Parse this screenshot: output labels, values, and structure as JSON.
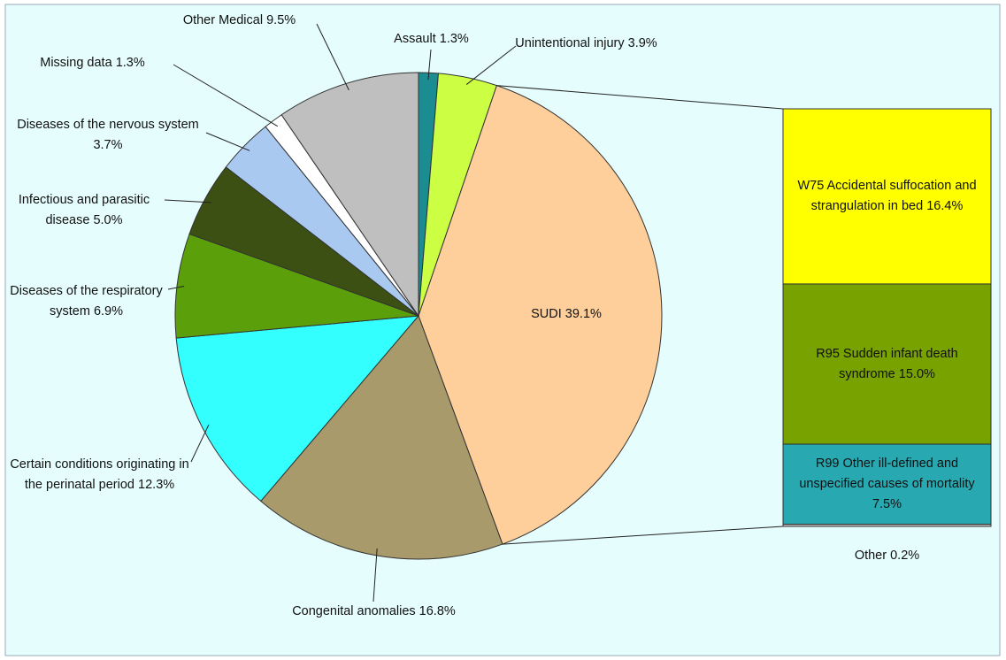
{
  "chart_data": {
    "type": "pie",
    "categories": [
      "Assault",
      "Unintentional injury",
      "SUDI",
      "Congenital anomalies",
      "Certain conditions originating in the perinatal period",
      "Diseases of the respiratory system",
      "Infectious and parasitic disease",
      "Diseases of the nervous system",
      "Missing data",
      "Other Medical"
    ],
    "values": [
      1.3,
      3.9,
      39.1,
      16.8,
      12.3,
      6.9,
      5.0,
      3.7,
      1.3,
      9.5
    ],
    "value_labels": [
      "1.3%",
      "3.9%",
      "39.1%",
      "16.8%",
      "12.3%",
      "6.9%",
      "5.0%",
      "3.7%",
      "1.3%",
      "9.5%"
    ],
    "colors": [
      "#1b8c92",
      "#ccff44",
      "#fecf9b",
      "#a89a6a",
      "#33ffff",
      "#5b9f0b",
      "#3b5012",
      "#a9c9f1",
      "#ffffff",
      "#bfbfbf"
    ],
    "breakdown": {
      "categories": [
        "W75 Accidental suffocation and strangulation in bed",
        "R95 Sudden infant death syndrome",
        "R99 Other ill-defined and unspecified causes of mortality",
        "Other"
      ],
      "values": [
        16.4,
        15.0,
        7.5,
        0.2
      ],
      "value_labels": [
        "16.4%",
        "15.0%",
        "7.5%",
        "0.2%"
      ],
      "colors": [
        "#ffff00",
        "#77a200",
        "#28a9b1",
        "#bfbfbf"
      ]
    }
  }
}
